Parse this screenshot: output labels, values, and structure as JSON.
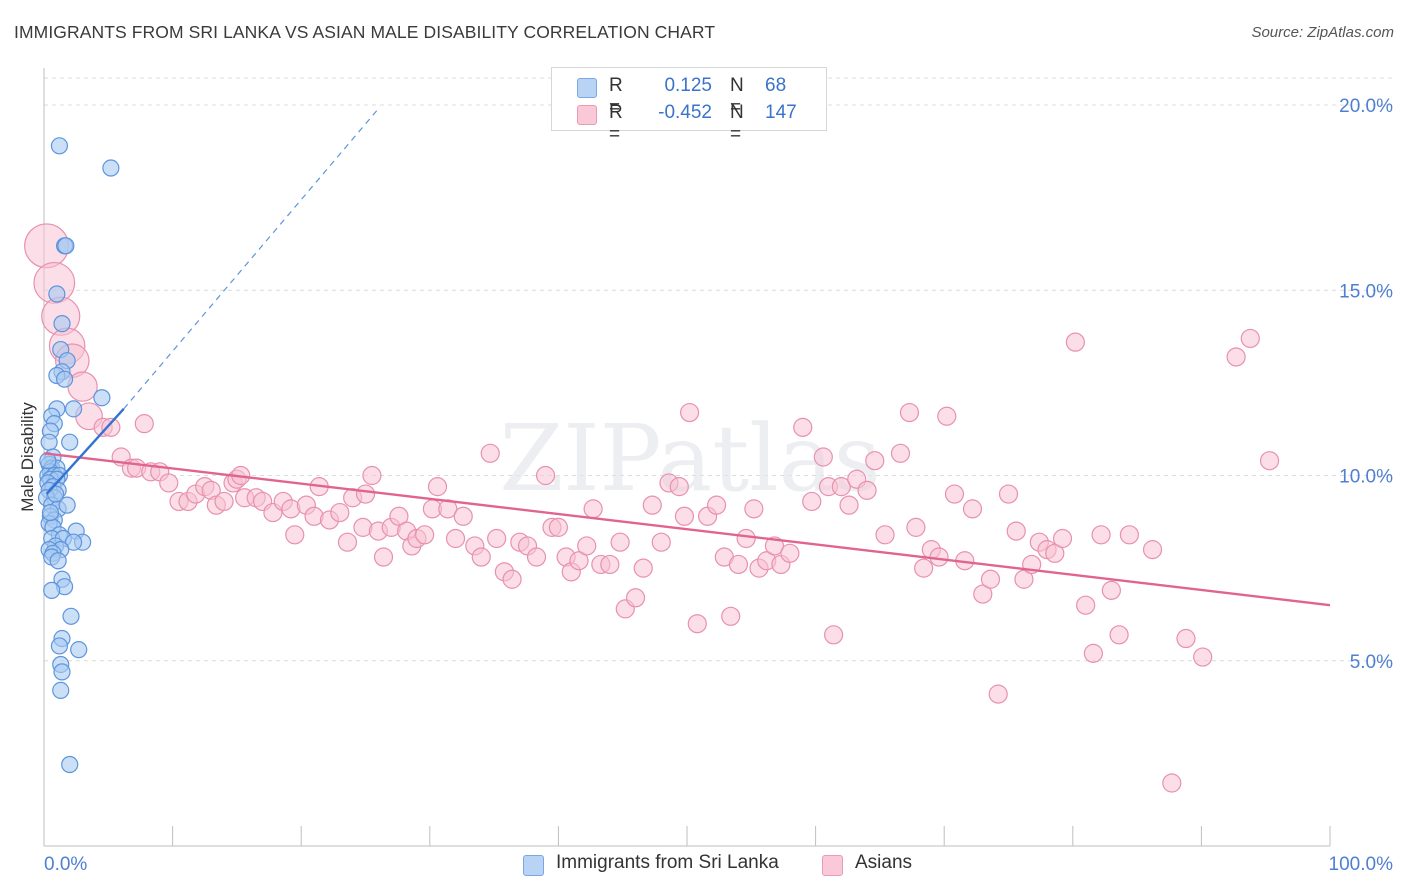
{
  "title": "IMMIGRANTS FROM SRI LANKA VS ASIAN MALE DISABILITY CORRELATION CHART",
  "source": "Source: ZipAtlas.com",
  "watermark": "ZIPatlas",
  "legend_top": [
    {
      "r_label": "R =",
      "r_value": "0.125",
      "n_label": "N =",
      "n_value": "68"
    },
    {
      "r_label": "R =",
      "r_value": "-0.452",
      "n_label": "N =",
      "n_value": "147"
    }
  ],
  "legend_bottom": [
    "Immigrants from Sri Lanka",
    "Asians"
  ],
  "colors": {
    "blue_fill": "#a9c9f2",
    "blue_stroke": "#5d95dd",
    "blue_line": "#3373d1",
    "pink_fill": "#f7c2d3",
    "pink_stroke": "#e891ae",
    "pink_line": "#e0648f",
    "axis_label": "#4f7fd0",
    "grid": "#dcdcdc"
  },
  "chart_data": {
    "type": "scatter",
    "title": "IMMIGRANTS FROM SRI LANKA VS ASIAN MALE DISABILITY CORRELATION CHART",
    "xlabel": "",
    "ylabel": "Male Disability",
    "xlim": [
      0,
      100
    ],
    "ylim": [
      0,
      21
    ],
    "x_tick_labels": [
      "0.0%",
      "100.0%"
    ],
    "y_ticks": [
      5,
      10,
      15,
      20
    ],
    "y_tick_labels": [
      "5.0%",
      "10.0%",
      "15.0%",
      "20.0%"
    ],
    "grid": true,
    "series": [
      {
        "name": "Immigrants from Sri Lanka",
        "color": "blue",
        "R": 0.125,
        "N": 68,
        "trend_solid": {
          "x": [
            0.2,
            6.2
          ],
          "y": [
            9.5,
            11.8
          ]
        },
        "trend_dashed": {
          "x": [
            6.2,
            26.0
          ],
          "y": [
            11.8,
            19.9
          ]
        },
        "points": [
          [
            1.2,
            18.9
          ],
          [
            5.2,
            18.3
          ],
          [
            1.6,
            16.2
          ],
          [
            1.7,
            16.2
          ],
          [
            1.0,
            14.9
          ],
          [
            1.4,
            14.1
          ],
          [
            1.3,
            13.4
          ],
          [
            1.8,
            13.1
          ],
          [
            1.4,
            12.8
          ],
          [
            1.0,
            12.7
          ],
          [
            1.6,
            12.6
          ],
          [
            4.5,
            12.1
          ],
          [
            1.0,
            11.8
          ],
          [
            2.3,
            11.8
          ],
          [
            0.6,
            11.6
          ],
          [
            0.8,
            11.4
          ],
          [
            0.5,
            11.2
          ],
          [
            0.4,
            10.9
          ],
          [
            2.0,
            10.9
          ],
          [
            0.7,
            10.5
          ],
          [
            0.4,
            10.3
          ],
          [
            0.6,
            10.2
          ],
          [
            1.0,
            10.2
          ],
          [
            0.5,
            10.1
          ],
          [
            0.3,
            10.0
          ],
          [
            0.8,
            10.0
          ],
          [
            1.2,
            10.0
          ],
          [
            0.5,
            9.9
          ],
          [
            1.0,
            9.9
          ],
          [
            0.3,
            9.8
          ],
          [
            0.7,
            9.7
          ],
          [
            1.1,
            9.6
          ],
          [
            0.4,
            9.6
          ],
          [
            0.8,
            9.4
          ],
          [
            0.2,
            9.4
          ],
          [
            0.6,
            9.2
          ],
          [
            1.1,
            9.1
          ],
          [
            0.5,
            8.9
          ],
          [
            0.8,
            8.8
          ],
          [
            0.4,
            8.7
          ],
          [
            0.7,
            8.6
          ],
          [
            2.5,
            8.5
          ],
          [
            1.2,
            8.4
          ],
          [
            0.6,
            8.3
          ],
          [
            1.5,
            8.3
          ],
          [
            3.0,
            8.2
          ],
          [
            2.3,
            8.2
          ],
          [
            0.9,
            8.1
          ],
          [
            1.3,
            8.0
          ],
          [
            0.4,
            8.0
          ],
          [
            0.7,
            7.9
          ],
          [
            0.6,
            7.8
          ],
          [
            1.1,
            7.7
          ],
          [
            1.4,
            7.2
          ],
          [
            1.6,
            7.0
          ],
          [
            0.6,
            6.9
          ],
          [
            2.1,
            6.2
          ],
          [
            1.4,
            5.6
          ],
          [
            1.2,
            5.4
          ],
          [
            2.7,
            5.3
          ],
          [
            1.3,
            4.9
          ],
          [
            1.4,
            4.7
          ],
          [
            1.3,
            4.2
          ],
          [
            2.0,
            2.2
          ],
          [
            0.9,
            9.5
          ],
          [
            0.5,
            9.0
          ],
          [
            0.3,
            10.4
          ],
          [
            1.8,
            9.2
          ]
        ]
      },
      {
        "name": "Asians",
        "color": "pink",
        "R": -0.452,
        "N": 147,
        "trend_solid": {
          "x": [
            0,
            100
          ],
          "y": [
            10.6,
            6.5
          ]
        },
        "points": [
          [
            0.2,
            16.2
          ],
          [
            0.8,
            15.2
          ],
          [
            1.3,
            14.3
          ],
          [
            1.8,
            13.5
          ],
          [
            2.2,
            13.1
          ],
          [
            3.0,
            12.4
          ],
          [
            3.5,
            11.6
          ],
          [
            4.6,
            11.3
          ],
          [
            5.2,
            11.3
          ],
          [
            7.8,
            11.4
          ],
          [
            6.0,
            10.5
          ],
          [
            6.8,
            10.2
          ],
          [
            7.2,
            10.2
          ],
          [
            8.3,
            10.1
          ],
          [
            9.0,
            10.1
          ],
          [
            9.7,
            9.8
          ],
          [
            10.5,
            9.3
          ],
          [
            11.2,
            9.3
          ],
          [
            11.8,
            9.5
          ],
          [
            12.5,
            9.7
          ],
          [
            13.0,
            9.6
          ],
          [
            13.4,
            9.2
          ],
          [
            14.0,
            9.3
          ],
          [
            14.7,
            9.8
          ],
          [
            15.0,
            9.9
          ],
          [
            15.3,
            10.0
          ],
          [
            15.6,
            9.4
          ],
          [
            16.5,
            9.4
          ],
          [
            17.0,
            9.3
          ],
          [
            17.8,
            9.0
          ],
          [
            18.6,
            9.3
          ],
          [
            19.2,
            9.1
          ],
          [
            19.5,
            8.4
          ],
          [
            20.4,
            9.2
          ],
          [
            21.0,
            8.9
          ],
          [
            21.4,
            9.7
          ],
          [
            22.2,
            8.8
          ],
          [
            23.0,
            9.0
          ],
          [
            23.6,
            8.2
          ],
          [
            24.0,
            9.4
          ],
          [
            24.8,
            8.6
          ],
          [
            25.0,
            9.5
          ],
          [
            25.5,
            10.0
          ],
          [
            26.0,
            8.5
          ],
          [
            26.4,
            7.8
          ],
          [
            27.0,
            8.6
          ],
          [
            27.6,
            8.9
          ],
          [
            28.2,
            8.5
          ],
          [
            28.6,
            8.1
          ],
          [
            29.0,
            8.3
          ],
          [
            29.6,
            8.4
          ],
          [
            30.2,
            9.1
          ],
          [
            30.6,
            9.7
          ],
          [
            31.4,
            9.1
          ],
          [
            32.0,
            8.3
          ],
          [
            32.6,
            8.9
          ],
          [
            33.5,
            8.1
          ],
          [
            34.0,
            7.8
          ],
          [
            34.7,
            10.6
          ],
          [
            35.2,
            8.3
          ],
          [
            35.8,
            7.4
          ],
          [
            36.4,
            7.2
          ],
          [
            37.0,
            8.2
          ],
          [
            37.6,
            8.1
          ],
          [
            38.3,
            7.8
          ],
          [
            39.0,
            10.0
          ],
          [
            39.5,
            8.6
          ],
          [
            40.0,
            8.6
          ],
          [
            40.6,
            7.8
          ],
          [
            41.0,
            7.4
          ],
          [
            41.6,
            7.7
          ],
          [
            42.2,
            8.1
          ],
          [
            42.7,
            9.1
          ],
          [
            43.3,
            7.6
          ],
          [
            44.0,
            7.6
          ],
          [
            44.8,
            8.2
          ],
          [
            45.2,
            6.4
          ],
          [
            46.0,
            6.7
          ],
          [
            46.6,
            7.5
          ],
          [
            47.3,
            9.2
          ],
          [
            48.0,
            8.2
          ],
          [
            48.6,
            9.8
          ],
          [
            49.4,
            9.7
          ],
          [
            49.8,
            8.9
          ],
          [
            50.2,
            11.7
          ],
          [
            50.8,
            6.0
          ],
          [
            51.6,
            8.9
          ],
          [
            52.3,
            9.2
          ],
          [
            52.9,
            7.8
          ],
          [
            53.4,
            6.2
          ],
          [
            54.0,
            7.6
          ],
          [
            54.6,
            8.3
          ],
          [
            55.2,
            9.1
          ],
          [
            55.6,
            7.5
          ],
          [
            56.2,
            7.7
          ],
          [
            56.8,
            8.1
          ],
          [
            57.3,
            7.6
          ],
          [
            58.0,
            7.9
          ],
          [
            59.0,
            11.3
          ],
          [
            59.7,
            9.3
          ],
          [
            60.6,
            10.5
          ],
          [
            61.0,
            9.7
          ],
          [
            61.4,
            5.7
          ],
          [
            62.0,
            9.7
          ],
          [
            62.6,
            9.2
          ],
          [
            63.2,
            9.9
          ],
          [
            64.0,
            9.6
          ],
          [
            64.6,
            10.4
          ],
          [
            65.4,
            8.4
          ],
          [
            66.6,
            10.6
          ],
          [
            67.3,
            11.7
          ],
          [
            67.8,
            8.6
          ],
          [
            68.4,
            7.5
          ],
          [
            69.0,
            8.0
          ],
          [
            69.6,
            7.8
          ],
          [
            70.2,
            11.6
          ],
          [
            70.8,
            9.5
          ],
          [
            71.6,
            7.7
          ],
          [
            72.2,
            9.1
          ],
          [
            73.0,
            6.8
          ],
          [
            73.6,
            7.2
          ],
          [
            74.2,
            4.1
          ],
          [
            75.0,
            9.5
          ],
          [
            75.6,
            8.5
          ],
          [
            76.2,
            7.2
          ],
          [
            76.8,
            7.6
          ],
          [
            77.4,
            8.2
          ],
          [
            78.0,
            8.0
          ],
          [
            78.6,
            7.9
          ],
          [
            79.2,
            8.3
          ],
          [
            80.2,
            13.6
          ],
          [
            81.0,
            6.5
          ],
          [
            81.6,
            5.2
          ],
          [
            82.2,
            8.4
          ],
          [
            83.0,
            6.9
          ],
          [
            83.6,
            5.7
          ],
          [
            84.4,
            8.4
          ],
          [
            86.2,
            8.0
          ],
          [
            87.7,
            1.7
          ],
          [
            88.8,
            5.6
          ],
          [
            90.1,
            5.1
          ],
          [
            92.7,
            13.2
          ],
          [
            93.8,
            13.7
          ],
          [
            95.3,
            10.4
          ]
        ]
      }
    ]
  }
}
